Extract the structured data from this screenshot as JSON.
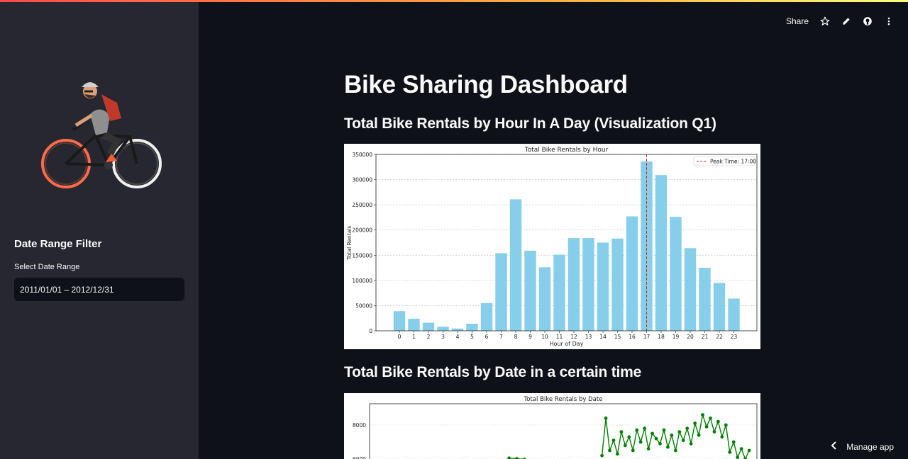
{
  "toolbar": {
    "share_label": "Share",
    "icons": [
      "star-icon",
      "pencil-icon",
      "github-icon",
      "more-vertical-icon"
    ]
  },
  "sidebar": {
    "filter_title": "Date Range Filter",
    "date_label": "Select Date Range",
    "date_value": "2011/01/01 – 2012/12/31"
  },
  "main": {
    "title": "Bike Sharing Dashboard",
    "section1_title": "Total Bike Rentals by Hour In A Day (Visualization Q1)",
    "section2_title": "Total Bike Rentals by Date in a certain time"
  },
  "manage_app": {
    "label": "Manage app"
  },
  "colors": {
    "bar": "#87ceeb",
    "peak_line": "#d62728",
    "line_series": "#008000",
    "accent": "#ff4b4b"
  },
  "chart_data": [
    {
      "type": "bar",
      "title": "Total Bike Rentals by Hour",
      "xlabel": "Hour of Day",
      "ylabel": "Total Rentals",
      "categories": [
        "0",
        "1",
        "2",
        "3",
        "4",
        "5",
        "6",
        "7",
        "8",
        "9",
        "10",
        "11",
        "12",
        "13",
        "14",
        "15",
        "16",
        "17",
        "18",
        "19",
        "20",
        "21",
        "22",
        "23"
      ],
      "values": [
        39000,
        24000,
        16000,
        8000,
        4500,
        14000,
        55000,
        154000,
        261000,
        159000,
        126000,
        151000,
        184000,
        184000,
        175000,
        183000,
        227000,
        336000,
        309000,
        226000,
        164000,
        125000,
        95000,
        64000
      ],
      "ylim": [
        0,
        350000
      ],
      "yticks": [
        "0",
        "50000",
        "100000",
        "150000",
        "200000",
        "250000",
        "300000",
        "350000"
      ],
      "peak_line": {
        "x": "17",
        "label": "Peak Time: 17:00"
      },
      "legend": "top-right",
      "grid": "horizontal-dashed"
    },
    {
      "type": "line",
      "title": "Total Bike Rentals by Date",
      "yticks": [
        "6000",
        "8000"
      ],
      "ylim": [
        5800,
        8900
      ],
      "series": [
        {
          "points": [
            [
              0.36,
              6050
            ],
            [
              0.38,
              6020
            ],
            [
              0.4,
              5980
            ]
          ]
        },
        {
          "points": [
            [
              0.6,
              6200
            ],
            [
              0.61,
              8400
            ],
            [
              0.62,
              6500
            ],
            [
              0.63,
              7100
            ],
            [
              0.64,
              6300
            ],
            [
              0.65,
              7600
            ],
            [
              0.66,
              6800
            ],
            [
              0.67,
              7300
            ],
            [
              0.68,
              6500
            ],
            [
              0.69,
              7700
            ],
            [
              0.7,
              7000
            ],
            [
              0.71,
              7800
            ],
            [
              0.72,
              6600
            ],
            [
              0.73,
              7500
            ],
            [
              0.74,
              7200
            ],
            [
              0.75,
              6900
            ],
            [
              0.76,
              7700
            ],
            [
              0.77,
              6700
            ],
            [
              0.78,
              7400
            ],
            [
              0.79,
              6500
            ],
            [
              0.8,
              7600
            ],
            [
              0.81,
              7100
            ],
            [
              0.82,
              7800
            ],
            [
              0.83,
              6900
            ],
            [
              0.84,
              8100
            ],
            [
              0.85,
              7400
            ],
            [
              0.86,
              8600
            ],
            [
              0.87,
              7900
            ],
            [
              0.88,
              8400
            ],
            [
              0.89,
              7600
            ],
            [
              0.9,
              8200
            ],
            [
              0.91,
              7300
            ],
            [
              0.92,
              8000
            ],
            [
              0.93,
              6400
            ],
            [
              0.94,
              7000
            ],
            [
              0.95,
              6100
            ],
            [
              0.96,
              6600
            ],
            [
              0.97,
              6000
            ],
            [
              0.98,
              6500
            ]
          ]
        }
      ]
    }
  ]
}
